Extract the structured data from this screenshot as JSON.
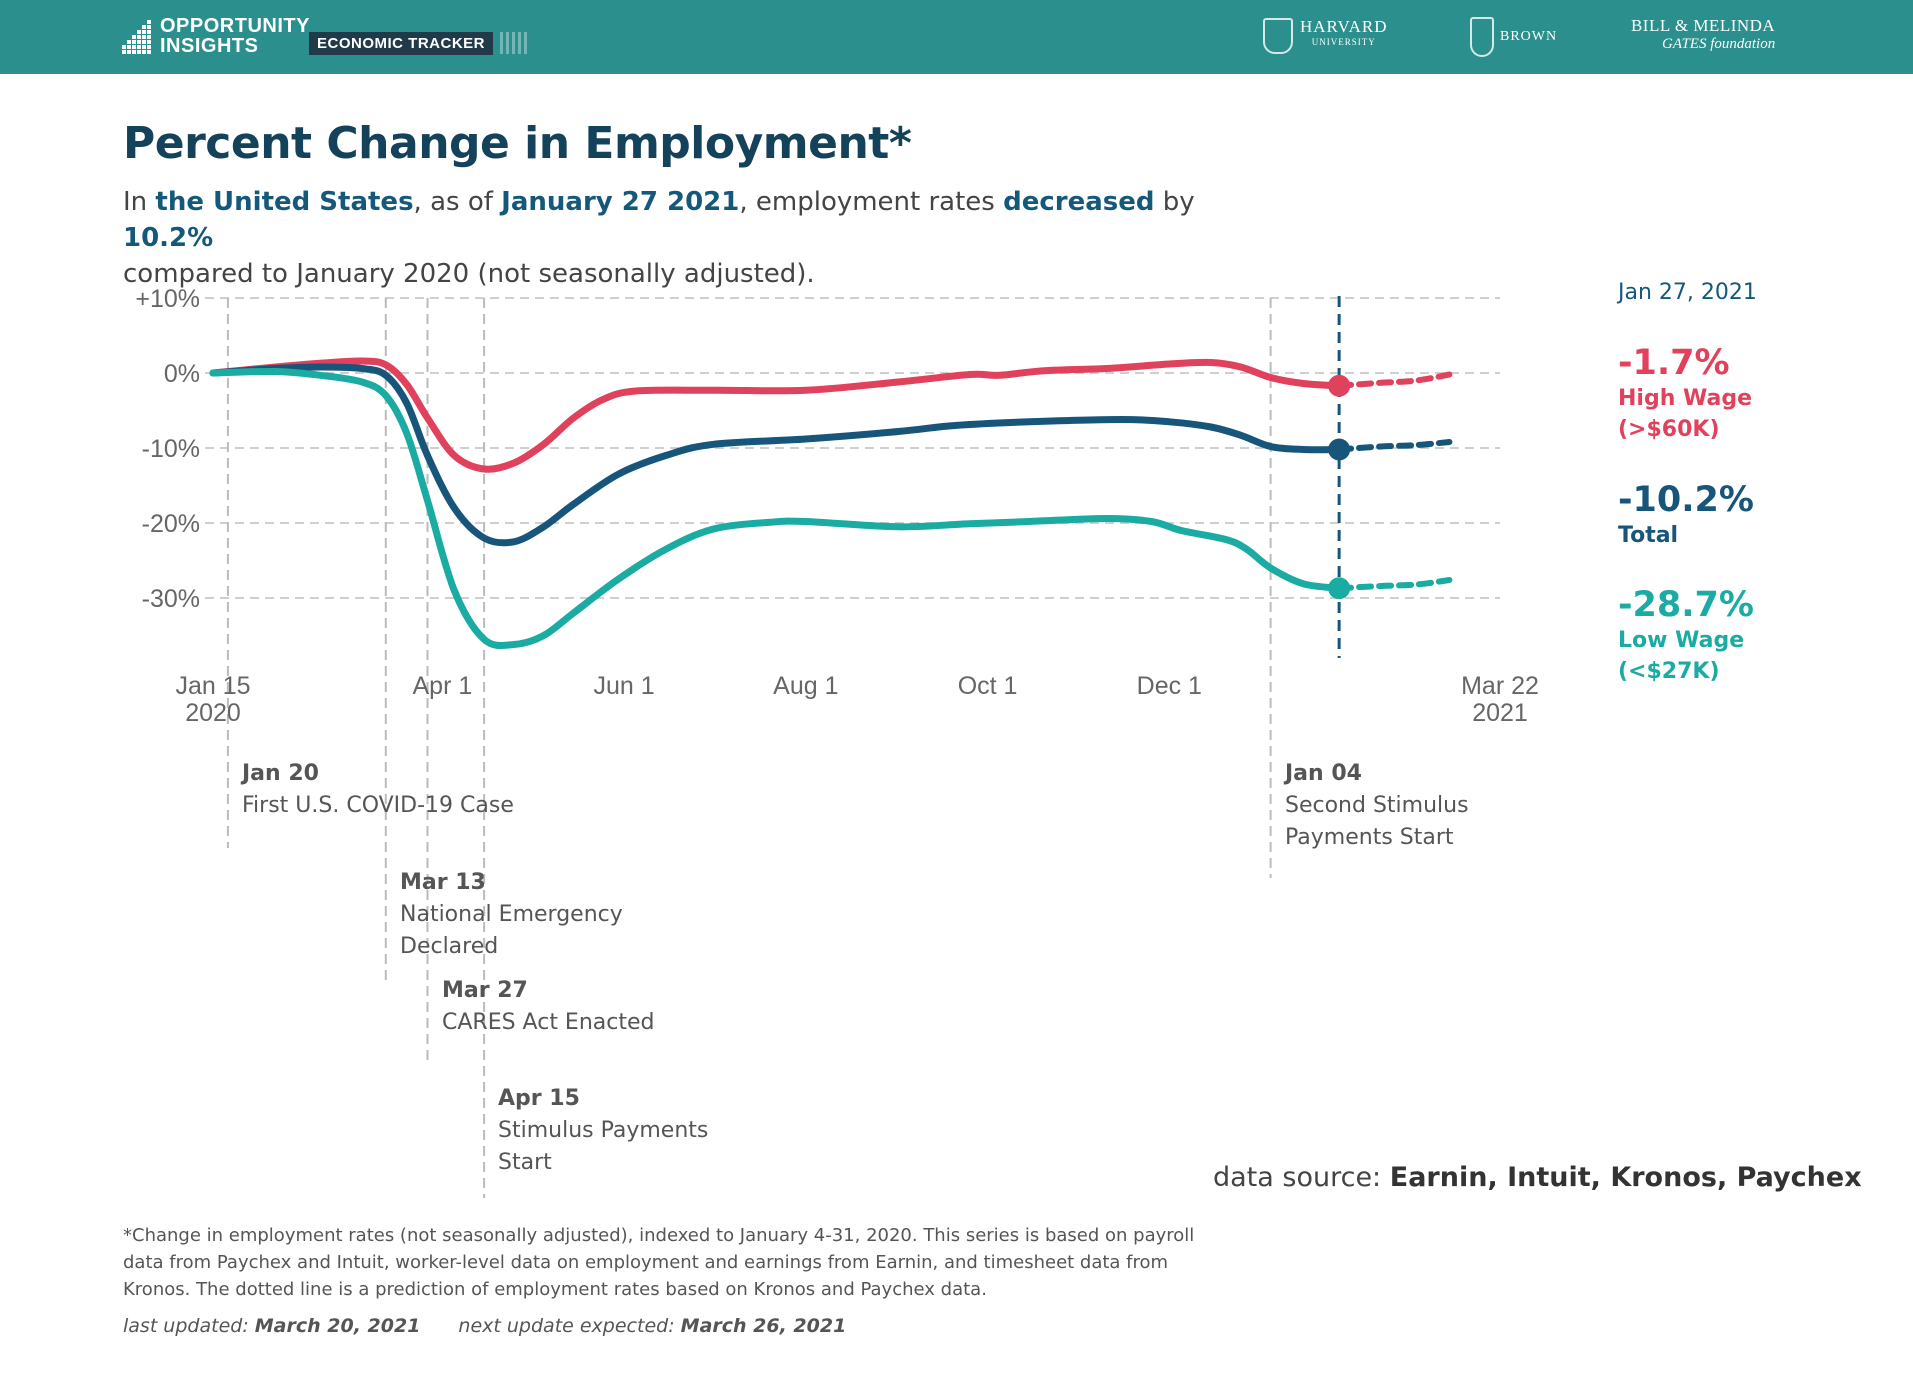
{
  "header": {
    "logo_line1": "OPPORTUNITY",
    "logo_line2": "INSIGHTS",
    "product": "ECONOMIC TRACKER",
    "partners": {
      "harvard": "HARVARD",
      "harvard_sub": "UNIVERSITY",
      "brown": "BROWN",
      "gates_line1": "BILL & MELINDA",
      "gates_line2": "GATES foundation"
    }
  },
  "title": "Percent Change in Employment*",
  "subtitle": {
    "p1": "In ",
    "location": "the United States",
    "p2": ", as of ",
    "date": "January 27 2021",
    "p3": ", employment rates ",
    "direction": "decreased",
    "p4": " by ",
    "amount": "10.2%",
    "p5": " compared to January 2020 (not seasonally adjusted)."
  },
  "chart_data": {
    "type": "line",
    "y_ticks": [
      "+10%",
      "0%",
      "-10%",
      "-20%",
      "-30%"
    ],
    "y_tick_values": [
      10,
      0,
      -10,
      -20,
      -30
    ],
    "ylim": [
      -38,
      11
    ],
    "x_ticks": [
      {
        "date": "2020-01-15",
        "line1": "Jan 15",
        "line2": "2020"
      },
      {
        "date": "2020-04-01",
        "line1": "Apr 1",
        "line2": ""
      },
      {
        "date": "2020-06-01",
        "line1": "Jun 1",
        "line2": ""
      },
      {
        "date": "2020-08-01",
        "line1": "Aug 1",
        "line2": ""
      },
      {
        "date": "2020-10-01",
        "line1": "Oct 1",
        "line2": ""
      },
      {
        "date": "2020-12-01",
        "line1": "Dec 1",
        "line2": ""
      },
      {
        "date": "2021-03-22",
        "line1": "Mar 22",
        "line2": "2021"
      }
    ],
    "xlim": [
      "2020-01-15",
      "2021-03-22"
    ],
    "grid": "horizontal dashed",
    "cursor_date": "2021-01-27",
    "series": [
      {
        "name": "High Wage",
        "color": "#e0415d",
        "points": [
          [
            "2020-01-15",
            0
          ],
          [
            "2020-02-05",
            0.8
          ],
          [
            "2020-02-20",
            1.3
          ],
          [
            "2020-03-05",
            1.6
          ],
          [
            "2020-03-13",
            1.1
          ],
          [
            "2020-03-20",
            -1.5
          ],
          [
            "2020-03-27",
            -6
          ],
          [
            "2020-04-05",
            -11
          ],
          [
            "2020-04-15",
            -12.8
          ],
          [
            "2020-04-25",
            -12
          ],
          [
            "2020-05-05",
            -9.5
          ],
          [
            "2020-05-15",
            -6
          ],
          [
            "2020-05-25",
            -3.5
          ],
          [
            "2020-06-05",
            -2.4
          ],
          [
            "2020-07-01",
            -2.3
          ],
          [
            "2020-08-01",
            -2.3
          ],
          [
            "2020-09-01",
            -1.2
          ],
          [
            "2020-09-25",
            -0.2
          ],
          [
            "2020-10-05",
            -0.3
          ],
          [
            "2020-10-20",
            0.3
          ],
          [
            "2020-11-10",
            0.6
          ],
          [
            "2020-12-01",
            1.2
          ],
          [
            "2020-12-15",
            1.4
          ],
          [
            "2020-12-25",
            0.8
          ],
          [
            "2021-01-04",
            -0.6
          ],
          [
            "2021-01-15",
            -1.4
          ],
          [
            "2021-01-27",
            -1.7
          ]
        ],
        "projection": [
          [
            "2021-01-27",
            -1.7
          ],
          [
            "2021-02-10",
            -1.3
          ],
          [
            "2021-02-22",
            -1.0
          ],
          [
            "2021-03-05",
            -0.2
          ]
        ],
        "current_value": "-1.7%",
        "label": "High Wage",
        "sublabel": "(>$60K)"
      },
      {
        "name": "Total",
        "color": "#17567a",
        "points": [
          [
            "2020-01-15",
            0
          ],
          [
            "2020-02-05",
            0.6
          ],
          [
            "2020-02-20",
            0.8
          ],
          [
            "2020-03-05",
            0.6
          ],
          [
            "2020-03-13",
            -0.3
          ],
          [
            "2020-03-20",
            -4
          ],
          [
            "2020-03-27",
            -11
          ],
          [
            "2020-04-05",
            -18
          ],
          [
            "2020-04-15",
            -22
          ],
          [
            "2020-04-25",
            -22.5
          ],
          [
            "2020-05-05",
            -20.5
          ],
          [
            "2020-05-15",
            -17.5
          ],
          [
            "2020-05-30",
            -13.5
          ],
          [
            "2020-06-15",
            -11
          ],
          [
            "2020-07-01",
            -9.5
          ],
          [
            "2020-08-01",
            -8.8
          ],
          [
            "2020-09-01",
            -7.8
          ],
          [
            "2020-09-20",
            -7
          ],
          [
            "2020-10-15",
            -6.5
          ],
          [
            "2020-11-15",
            -6.2
          ],
          [
            "2020-12-01",
            -6.5
          ],
          [
            "2020-12-15",
            -7.2
          ],
          [
            "2020-12-25",
            -8.3
          ],
          [
            "2021-01-04",
            -9.8
          ],
          [
            "2021-01-15",
            -10.2
          ],
          [
            "2021-01-27",
            -10.2
          ]
        ],
        "projection": [
          [
            "2021-01-27",
            -10.2
          ],
          [
            "2021-02-10",
            -9.8
          ],
          [
            "2021-02-22",
            -9.6
          ],
          [
            "2021-03-05",
            -9.2
          ]
        ],
        "current_value": "-10.2%",
        "label": "Total",
        "sublabel": ""
      },
      {
        "name": "Low Wage",
        "color": "#1aaba3",
        "points": [
          [
            "2020-01-15",
            0
          ],
          [
            "2020-02-05",
            0.2
          ],
          [
            "2020-02-20",
            -0.3
          ],
          [
            "2020-03-05",
            -1.2
          ],
          [
            "2020-03-13",
            -3
          ],
          [
            "2020-03-20",
            -8
          ],
          [
            "2020-03-27",
            -17
          ],
          [
            "2020-04-05",
            -29
          ],
          [
            "2020-04-15",
            -35.5
          ],
          [
            "2020-04-25",
            -36.2
          ],
          [
            "2020-05-05",
            -35
          ],
          [
            "2020-05-15",
            -32
          ],
          [
            "2020-05-30",
            -27.5
          ],
          [
            "2020-06-15",
            -23.5
          ],
          [
            "2020-07-01",
            -20.8
          ],
          [
            "2020-07-20",
            -19.9
          ],
          [
            "2020-08-01",
            -19.8
          ],
          [
            "2020-09-01",
            -20.5
          ],
          [
            "2020-09-25",
            -20.1
          ],
          [
            "2020-10-15",
            -19.8
          ],
          [
            "2020-11-10",
            -19.4
          ],
          [
            "2020-11-25",
            -19.8
          ],
          [
            "2020-12-05",
            -21
          ],
          [
            "2020-12-20",
            -22.2
          ],
          [
            "2020-12-27",
            -23.5
          ],
          [
            "2021-01-04",
            -26
          ],
          [
            "2021-01-15",
            -28.1
          ],
          [
            "2021-01-27",
            -28.7
          ]
        ],
        "projection": [
          [
            "2021-01-27",
            -28.7
          ],
          [
            "2021-02-10",
            -28.4
          ],
          [
            "2021-02-22",
            -28.2
          ],
          [
            "2021-03-05",
            -27.6
          ]
        ],
        "current_value": "-28.7%",
        "label": "Low Wage",
        "sublabel": "(<$27K)"
      }
    ],
    "annotations": [
      {
        "date": "2020-01-20",
        "label": "Jan 20",
        "lines": [
          "First U.S. COVID-19 Case"
        ]
      },
      {
        "date": "2020-03-13",
        "label": "Mar 13",
        "lines": [
          "National Emergency",
          "Declared"
        ]
      },
      {
        "date": "2020-03-27",
        "label": "Mar 27",
        "lines": [
          "CARES Act Enacted"
        ]
      },
      {
        "date": "2020-04-15",
        "label": "Apr 15",
        "lines": [
          "Stimulus Payments",
          "Start"
        ]
      },
      {
        "date": "2021-01-04",
        "label": "Jan 04",
        "lines": [
          "Second Stimulus",
          "Payments Start"
        ]
      }
    ]
  },
  "side_panel": {
    "date": "Jan 27, 2021"
  },
  "source": {
    "label": "data source:",
    "value": "Earnin, Intuit, Kronos, Paychex"
  },
  "footnote": "*Change in employment rates (not seasonally adjusted), indexed to January 4-31, 2020. This series is based on payroll data from Paychex and Intuit, worker-level data on employment and earnings from Earnin, and timesheet data from Kronos. The dotted line is a prediction of employment rates based on Kronos and Paychex data.",
  "updated": {
    "last_label": "last updated:",
    "last_value": "March 20, 2021",
    "next_label": "next update expected:",
    "next_value": "March 26, 2021"
  }
}
